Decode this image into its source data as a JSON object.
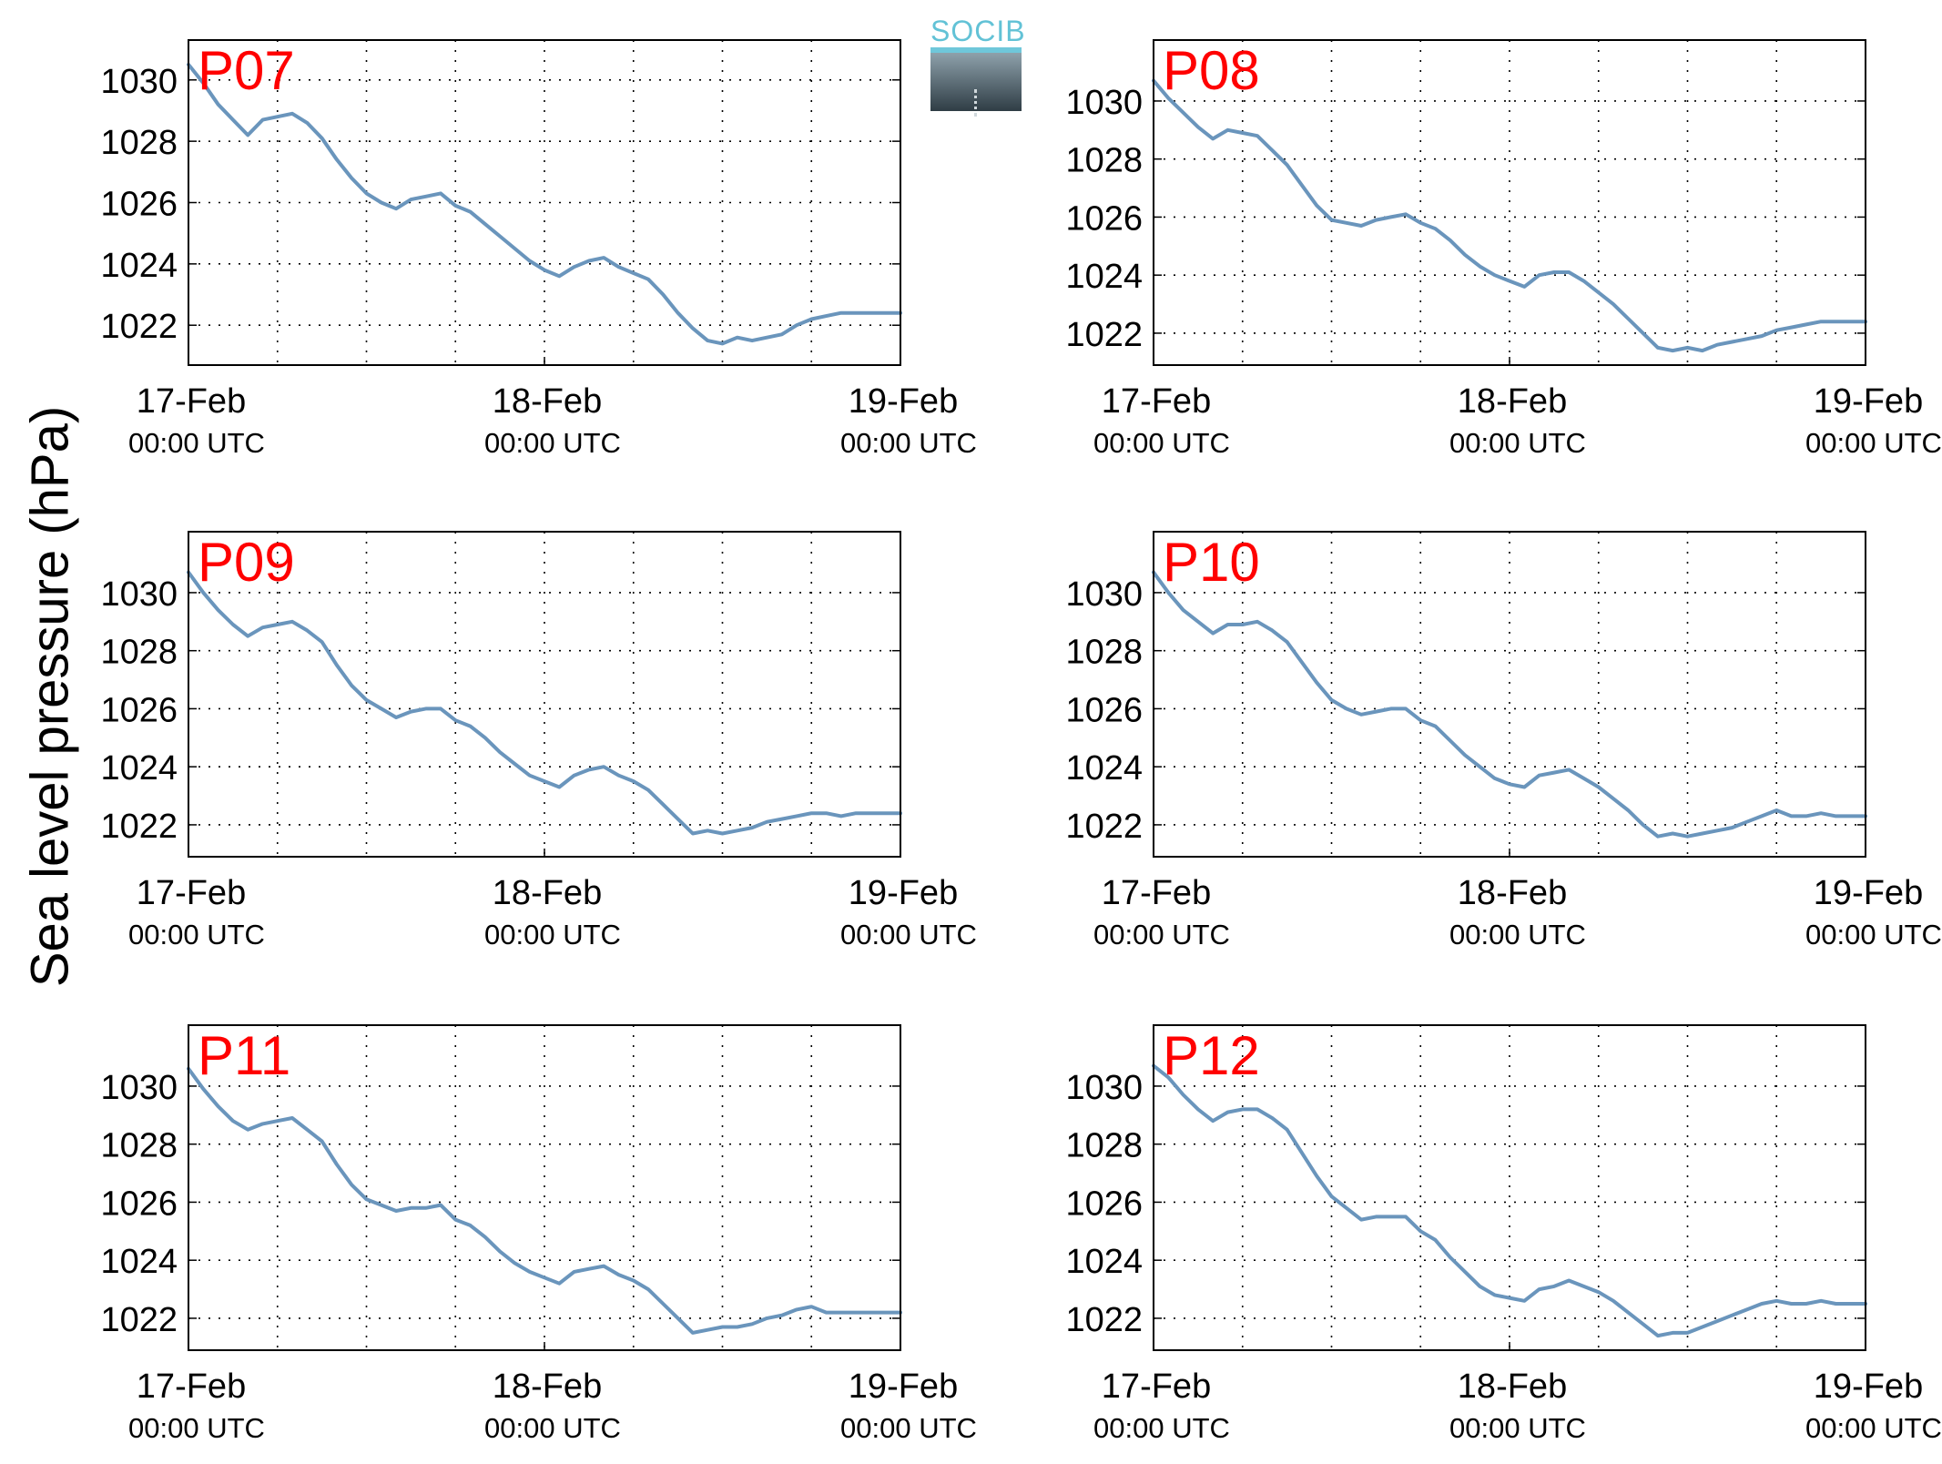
{
  "figure": {
    "ylabel": "Sea level pressure (hPa)",
    "logo_text": "SOCIB",
    "colors": {
      "line": "#6a95bc",
      "station_label": "#ff0000",
      "axis": "#000000"
    }
  },
  "chart_data": [
    {
      "type": "line",
      "title": "P07",
      "xticks": [
        {
          "line1": "17-Feb",
          "line2": "00:00 UTC"
        },
        {
          "line1": "18-Feb",
          "line2": "00:00 UTC"
        },
        {
          "line1": "19-Feb",
          "line2": "00:00 UTC"
        }
      ],
      "yticks": [
        1022,
        1024,
        1026,
        1028,
        1030
      ],
      "xlim": [
        0,
        48
      ],
      "ylim": [
        1020.7,
        1031.3
      ],
      "grid": true,
      "x": [
        0,
        1,
        2,
        3,
        4,
        5,
        6,
        7,
        8,
        9,
        10,
        11,
        12,
        13,
        14,
        15,
        16,
        17,
        18,
        19,
        20,
        21,
        22,
        23,
        24,
        25,
        26,
        27,
        28,
        29,
        30,
        31,
        32,
        33,
        34,
        35,
        36,
        37,
        38,
        39,
        40,
        41,
        42,
        43,
        44,
        45,
        46,
        47,
        48
      ],
      "y": [
        1030.5,
        1029.9,
        1029.2,
        1028.7,
        1028.2,
        1028.7,
        1028.8,
        1028.9,
        1028.6,
        1028.1,
        1027.4,
        1026.8,
        1026.3,
        1026.0,
        1025.8,
        1026.1,
        1026.2,
        1026.3,
        1025.9,
        1025.7,
        1025.3,
        1024.9,
        1024.5,
        1024.1,
        1023.8,
        1023.6,
        1023.9,
        1024.1,
        1024.2,
        1023.9,
        1023.7,
        1023.5,
        1023.0,
        1022.4,
        1021.9,
        1021.5,
        1021.4,
        1021.6,
        1021.5,
        1021.6,
        1021.7,
        1022.0,
        1022.2,
        1022.3,
        1022.4,
        1022.4,
        1022.4,
        1022.4,
        1022.4
      ]
    },
    {
      "type": "line",
      "title": "P08",
      "xticks": [
        {
          "line1": "17-Feb",
          "line2": "00:00 UTC"
        },
        {
          "line1": "18-Feb",
          "line2": "00:00 UTC"
        },
        {
          "line1": "19-Feb",
          "line2": "00:00 UTC"
        }
      ],
      "yticks": [
        1022,
        1024,
        1026,
        1028,
        1030
      ],
      "xlim": [
        0,
        48
      ],
      "ylim": [
        1020.9,
        1032.1
      ],
      "grid": true,
      "x": [
        0,
        1,
        2,
        3,
        4,
        5,
        6,
        7,
        8,
        9,
        10,
        11,
        12,
        13,
        14,
        15,
        16,
        17,
        18,
        19,
        20,
        21,
        22,
        23,
        24,
        25,
        26,
        27,
        28,
        29,
        30,
        31,
        32,
        33,
        34,
        35,
        36,
        37,
        38,
        39,
        40,
        41,
        42,
        43,
        44,
        45,
        46,
        47,
        48
      ],
      "y": [
        1030.7,
        1030.1,
        1029.6,
        1029.1,
        1028.7,
        1029.0,
        1028.9,
        1028.8,
        1028.3,
        1027.8,
        1027.1,
        1026.4,
        1025.9,
        1025.8,
        1025.7,
        1025.9,
        1026.0,
        1026.1,
        1025.8,
        1025.6,
        1025.2,
        1024.7,
        1024.3,
        1024.0,
        1023.8,
        1023.6,
        1024.0,
        1024.1,
        1024.1,
        1023.8,
        1023.4,
        1023.0,
        1022.5,
        1022.0,
        1021.5,
        1021.4,
        1021.5,
        1021.4,
        1021.6,
        1021.7,
        1021.8,
        1021.9,
        1022.1,
        1022.2,
        1022.3,
        1022.4,
        1022.4,
        1022.4,
        1022.4
      ]
    },
    {
      "type": "line",
      "title": "P09",
      "xticks": [
        {
          "line1": "17-Feb",
          "line2": "00:00 UTC"
        },
        {
          "line1": "18-Feb",
          "line2": "00:00 UTC"
        },
        {
          "line1": "19-Feb",
          "line2": "00:00 UTC"
        }
      ],
      "yticks": [
        1022,
        1024,
        1026,
        1028,
        1030
      ],
      "xlim": [
        0,
        48
      ],
      "ylim": [
        1020.9,
        1032.1
      ],
      "grid": true,
      "x": [
        0,
        1,
        2,
        3,
        4,
        5,
        6,
        7,
        8,
        9,
        10,
        11,
        12,
        13,
        14,
        15,
        16,
        17,
        18,
        19,
        20,
        21,
        22,
        23,
        24,
        25,
        26,
        27,
        28,
        29,
        30,
        31,
        32,
        33,
        34,
        35,
        36,
        37,
        38,
        39,
        40,
        41,
        42,
        43,
        44,
        45,
        46,
        47,
        48
      ],
      "y": [
        1030.7,
        1030.0,
        1029.4,
        1028.9,
        1028.5,
        1028.8,
        1028.9,
        1029.0,
        1028.7,
        1028.3,
        1027.5,
        1026.8,
        1026.3,
        1026.0,
        1025.7,
        1025.9,
        1026.0,
        1026.0,
        1025.6,
        1025.4,
        1025.0,
        1024.5,
        1024.1,
        1023.7,
        1023.5,
        1023.3,
        1023.7,
        1023.9,
        1024.0,
        1023.7,
        1023.5,
        1023.2,
        1022.7,
        1022.2,
        1021.7,
        1021.8,
        1021.7,
        1021.8,
        1021.9,
        1022.1,
        1022.2,
        1022.3,
        1022.4,
        1022.4,
        1022.3,
        1022.4,
        1022.4,
        1022.4,
        1022.4
      ]
    },
    {
      "type": "line",
      "title": "P10",
      "xticks": [
        {
          "line1": "17-Feb",
          "line2": "00:00 UTC"
        },
        {
          "line1": "18-Feb",
          "line2": "00:00 UTC"
        },
        {
          "line1": "19-Feb",
          "line2": "00:00 UTC"
        }
      ],
      "yticks": [
        1022,
        1024,
        1026,
        1028,
        1030
      ],
      "xlim": [
        0,
        48
      ],
      "ylim": [
        1020.9,
        1032.1
      ],
      "grid": true,
      "x": [
        0,
        1,
        2,
        3,
        4,
        5,
        6,
        7,
        8,
        9,
        10,
        11,
        12,
        13,
        14,
        15,
        16,
        17,
        18,
        19,
        20,
        21,
        22,
        23,
        24,
        25,
        26,
        27,
        28,
        29,
        30,
        31,
        32,
        33,
        34,
        35,
        36,
        37,
        38,
        39,
        40,
        41,
        42,
        43,
        44,
        45,
        46,
        47,
        48
      ],
      "y": [
        1030.7,
        1030.0,
        1029.4,
        1029.0,
        1028.6,
        1028.9,
        1028.9,
        1029.0,
        1028.7,
        1028.3,
        1027.6,
        1026.9,
        1026.3,
        1026.0,
        1025.8,
        1025.9,
        1026.0,
        1026.0,
        1025.6,
        1025.4,
        1024.9,
        1024.4,
        1024.0,
        1023.6,
        1023.4,
        1023.3,
        1023.7,
        1023.8,
        1023.9,
        1023.6,
        1023.3,
        1022.9,
        1022.5,
        1022.0,
        1021.6,
        1021.7,
        1021.6,
        1021.7,
        1021.8,
        1021.9,
        1022.1,
        1022.3,
        1022.5,
        1022.3,
        1022.3,
        1022.4,
        1022.3,
        1022.3,
        1022.3
      ]
    },
    {
      "type": "line",
      "title": "P11",
      "xticks": [
        {
          "line1": "17-Feb",
          "line2": "00:00 UTC"
        },
        {
          "line1": "18-Feb",
          "line2": "00:00 UTC"
        },
        {
          "line1": "19-Feb",
          "line2": "00:00 UTC"
        }
      ],
      "yticks": [
        1022,
        1024,
        1026,
        1028,
        1030
      ],
      "xlim": [
        0,
        48
      ],
      "ylim": [
        1020.9,
        1032.1
      ],
      "grid": true,
      "x": [
        0,
        1,
        2,
        3,
        4,
        5,
        6,
        7,
        8,
        9,
        10,
        11,
        12,
        13,
        14,
        15,
        16,
        17,
        18,
        19,
        20,
        21,
        22,
        23,
        24,
        25,
        26,
        27,
        28,
        29,
        30,
        31,
        32,
        33,
        34,
        35,
        36,
        37,
        38,
        39,
        40,
        41,
        42,
        43,
        44,
        45,
        46,
        47,
        48
      ],
      "y": [
        1030.6,
        1029.9,
        1029.3,
        1028.8,
        1028.5,
        1028.7,
        1028.8,
        1028.9,
        1028.5,
        1028.1,
        1027.3,
        1026.6,
        1026.1,
        1025.9,
        1025.7,
        1025.8,
        1025.8,
        1025.9,
        1025.4,
        1025.2,
        1024.8,
        1024.3,
        1023.9,
        1023.6,
        1023.4,
        1023.2,
        1023.6,
        1023.7,
        1023.8,
        1023.5,
        1023.3,
        1023.0,
        1022.5,
        1022.0,
        1021.5,
        1021.6,
        1021.7,
        1021.7,
        1021.8,
        1022.0,
        1022.1,
        1022.3,
        1022.4,
        1022.2,
        1022.2,
        1022.2,
        1022.2,
        1022.2,
        1022.2
      ]
    },
    {
      "type": "line",
      "title": "P12",
      "xticks": [
        {
          "line1": "17-Feb",
          "line2": "00:00 UTC"
        },
        {
          "line1": "18-Feb",
          "line2": "00:00 UTC"
        },
        {
          "line1": "19-Feb",
          "line2": "00:00 UTC"
        }
      ],
      "yticks": [
        1022,
        1024,
        1026,
        1028,
        1030
      ],
      "xlim": [
        0,
        48
      ],
      "ylim": [
        1020.9,
        1032.1
      ],
      "grid": true,
      "x": [
        0,
        1,
        2,
        3,
        4,
        5,
        6,
        7,
        8,
        9,
        10,
        11,
        12,
        13,
        14,
        15,
        16,
        17,
        18,
        19,
        20,
        21,
        22,
        23,
        24,
        25,
        26,
        27,
        28,
        29,
        30,
        31,
        32,
        33,
        34,
        35,
        36,
        37,
        38,
        39,
        40,
        41,
        42,
        43,
        44,
        45,
        46,
        47,
        48
      ],
      "y": [
        1030.7,
        1030.3,
        1029.7,
        1029.2,
        1028.8,
        1029.1,
        1029.2,
        1029.2,
        1028.9,
        1028.5,
        1027.7,
        1026.9,
        1026.2,
        1025.8,
        1025.4,
        1025.5,
        1025.5,
        1025.5,
        1025.0,
        1024.7,
        1024.1,
        1023.6,
        1023.1,
        1022.8,
        1022.7,
        1022.6,
        1023.0,
        1023.1,
        1023.3,
        1023.1,
        1022.9,
        1022.6,
        1022.2,
        1021.8,
        1021.4,
        1021.5,
        1021.5,
        1021.7,
        1021.9,
        1022.1,
        1022.3,
        1022.5,
        1022.6,
        1022.5,
        1022.5,
        1022.6,
        1022.5,
        1022.5,
        1022.5
      ]
    }
  ]
}
